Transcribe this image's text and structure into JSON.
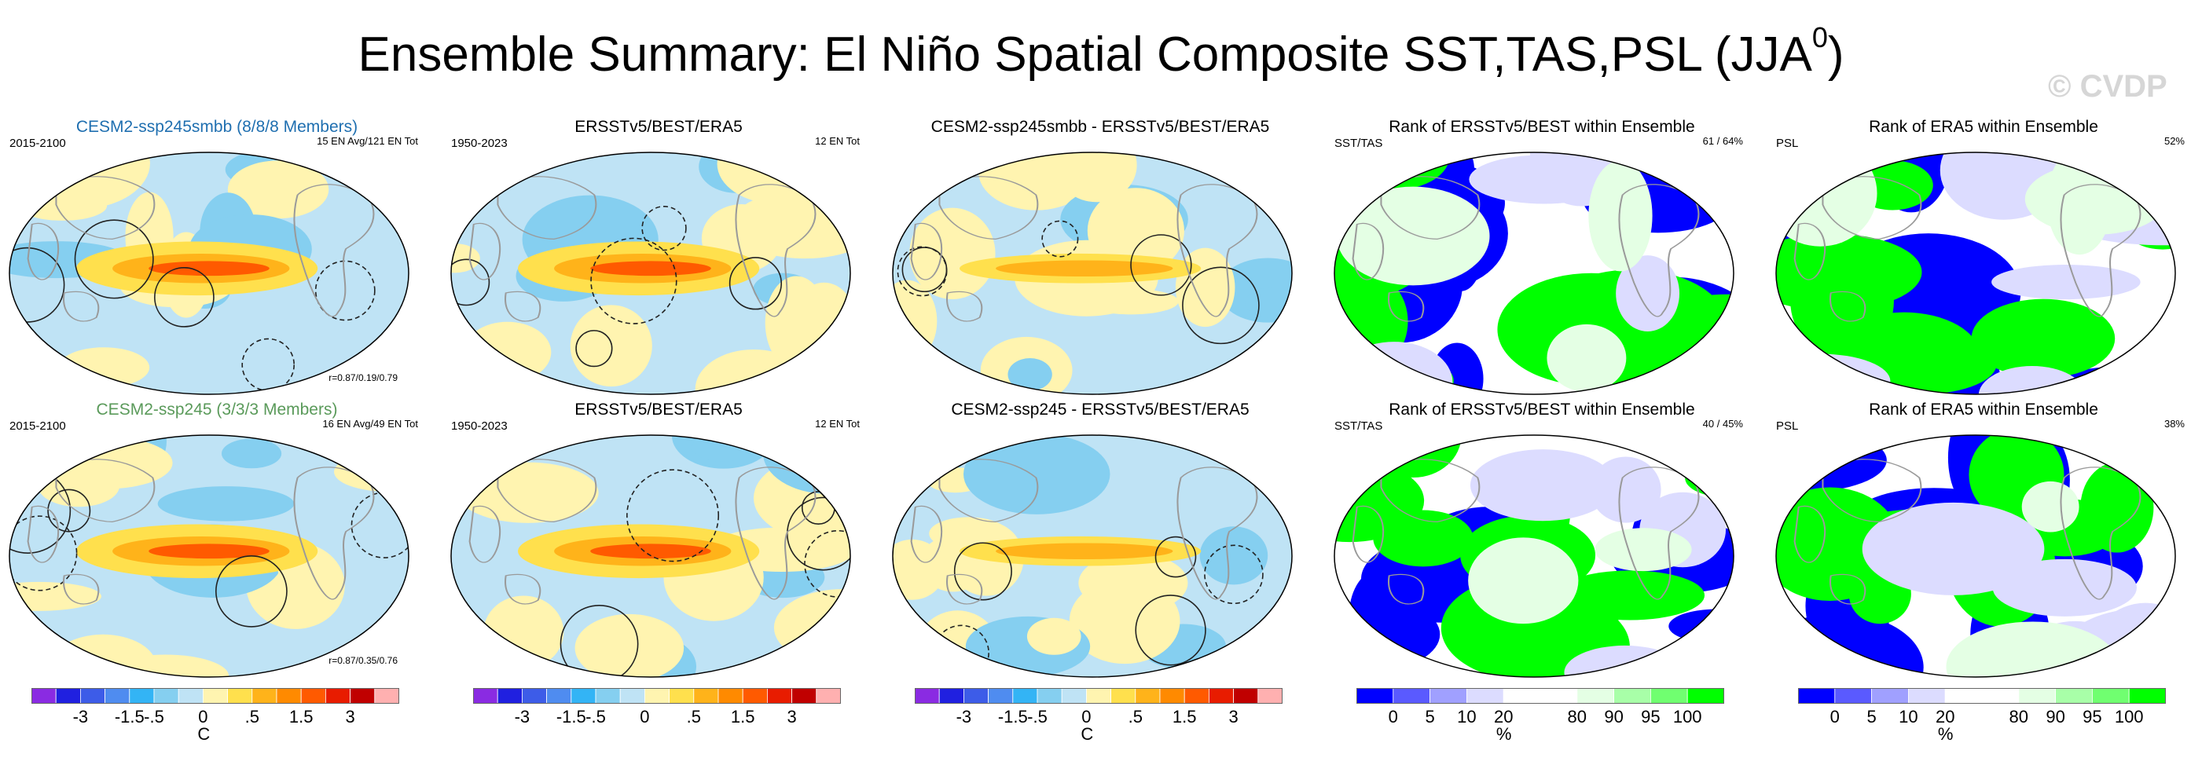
{
  "title": {
    "text": "Ensemble Summary: El Niño Spatial Composite SST,TAS,PSL (JJA",
    "sup": "0",
    "close": ")"
  },
  "watermark": "© CVDP",
  "colors": {
    "sst_scale": [
      "#8a2be2",
      "#2020e0",
      "#3d5ce8",
      "#4f8cf0",
      "#33b4f5",
      "#85cff0",
      "#bfe3f5",
      "#fff4b0",
      "#ffe04d",
      "#ffb31a",
      "#ff8a00",
      "#ff5a00",
      "#e81c00",
      "#c00000",
      "#ffb0b0"
    ],
    "rank_scale": [
      "#0000ff",
      "#5a5aff",
      "#a0a0ff",
      "#dcdcff",
      "#ffffff",
      "#ffffff",
      "#e4ffe4",
      "#a8ffa8",
      "#70ff70",
      "#00ff00"
    ],
    "ocean_bg": "#bfe3f5",
    "land_line": "#9a9a9a"
  },
  "panels": [
    {
      "id": "r1c1",
      "type": "composite",
      "title": "CESM2-ssp245smbb (8/8/8 Members)",
      "title_color": "#1f6fb0",
      "left": "2015-2100",
      "right": "15 EN Avg/121 EN Tot",
      "corr": "r=0.87/0.19/0.79"
    },
    {
      "id": "r1c2",
      "type": "composite",
      "title": "ERSSTv5/BEST/ERA5",
      "title_color": "#000000",
      "left": "1950-2023",
      "right": "12 EN Tot",
      "corr": ""
    },
    {
      "id": "r1c3",
      "type": "difference",
      "title": "CESM2-ssp245smbb - ERSSTv5/BEST/ERA5",
      "title_color": "#000000",
      "left": "",
      "right": "",
      "corr": ""
    },
    {
      "id": "r1c4",
      "type": "rank",
      "title": "Rank of ERSSTv5/BEST within Ensemble",
      "title_color": "#000000",
      "left": "SST/TAS",
      "right": "61 /  64%",
      "corr": ""
    },
    {
      "id": "r1c5",
      "type": "rank",
      "title": "Rank of ERA5 within Ensemble",
      "title_color": "#000000",
      "left": "PSL",
      "right": "52%",
      "corr": ""
    },
    {
      "id": "r2c1",
      "type": "composite",
      "title": "CESM2-ssp245 (3/3/3 Members)",
      "title_color": "#5a9a5a",
      "left": "2015-2100",
      "right": "16 EN Avg/49 EN Tot",
      "corr": "r=0.87/0.35/0.76"
    },
    {
      "id": "r2c2",
      "type": "composite",
      "title": "ERSSTv5/BEST/ERA5",
      "title_color": "#000000",
      "left": "1950-2023",
      "right": "12 EN Tot",
      "corr": ""
    },
    {
      "id": "r2c3",
      "type": "difference",
      "title": "CESM2-ssp245 - ERSSTv5/BEST/ERA5",
      "title_color": "#000000",
      "left": "",
      "right": "",
      "corr": ""
    },
    {
      "id": "r2c4",
      "type": "rank",
      "title": "Rank of ERSSTv5/BEST within Ensemble",
      "title_color": "#000000",
      "left": "SST/TAS",
      "right": "40 /  45%",
      "corr": ""
    },
    {
      "id": "r2c5",
      "type": "rank",
      "title": "Rank of ERA5 within Ensemble",
      "title_color": "#000000",
      "left": "PSL",
      "right": "38%",
      "corr": ""
    }
  ],
  "colorbars": [
    {
      "id": "cb1",
      "kind": "sst",
      "ticks": [
        "-3",
        "-1.5",
        "-.5",
        "0",
        ".5",
        "1.5",
        "3"
      ],
      "unit": "C"
    },
    {
      "id": "cb2",
      "kind": "sst",
      "ticks": [
        "-3",
        "-1.5",
        "-.5",
        "0",
        ".5",
        "1.5",
        "3"
      ],
      "unit": ""
    },
    {
      "id": "cb3",
      "kind": "sst",
      "ticks": [
        "-3",
        "-1.5",
        "-.5",
        "0",
        ".5",
        "1.5",
        "3"
      ],
      "unit": "C"
    },
    {
      "id": "cb4",
      "kind": "rank",
      "ticks": [
        "0",
        "5",
        "10",
        "20",
        "80",
        "90",
        "95",
        "100"
      ],
      "unit": "%"
    },
    {
      "id": "cb5",
      "kind": "rank",
      "ticks": [
        "0",
        "5",
        "10",
        "20",
        "80",
        "90",
        "95",
        "100"
      ],
      "unit": "%"
    }
  ],
  "chart_data": {
    "type": "heatmap",
    "title": "Ensemble Summary: El Niño Spatial Composite SST,TAS,PSL (JJA0)",
    "variables": [
      "SST",
      "TAS",
      "PSL"
    ],
    "season": "JJA0",
    "composite_contour_levels_C": [
      -3,
      -2.5,
      -2,
      -1.5,
      -1,
      -0.5,
      -0.25,
      0,
      0.25,
      0.5,
      1,
      1.5,
      2,
      2.5,
      3
    ],
    "composite_tick_labels": [
      "-3",
      "-1.5",
      "-.5",
      "0",
      ".5",
      "1.5",
      "3"
    ],
    "composite_units": "C",
    "rank_levels_percent": [
      0,
      5,
      10,
      20,
      80,
      90,
      95,
      100
    ],
    "rank_units": "%",
    "ensembles": [
      {
        "name": "CESM2-ssp245smbb",
        "members": "8/8/8",
        "years": "2015-2100",
        "el_nino_avg": 15,
        "el_nino_total": 121,
        "pattern_corr": [
          0.87,
          0.19,
          0.79
        ],
        "sst_tas_rank_pct": [
          61,
          64
        ],
        "psl_rank_pct": 52
      },
      {
        "name": "CESM2-ssp245",
        "members": "3/3/3",
        "years": "2015-2100",
        "el_nino_avg": 16,
        "el_nino_total": 49,
        "pattern_corr": [
          0.87,
          0.35,
          0.76
        ],
        "sst_tas_rank_pct": [
          40,
          45
        ],
        "psl_rank_pct": 38
      }
    ],
    "observations": {
      "name": "ERSSTv5/BEST/ERA5",
      "years": "1950-2023",
      "el_nino_total": 12
    }
  }
}
